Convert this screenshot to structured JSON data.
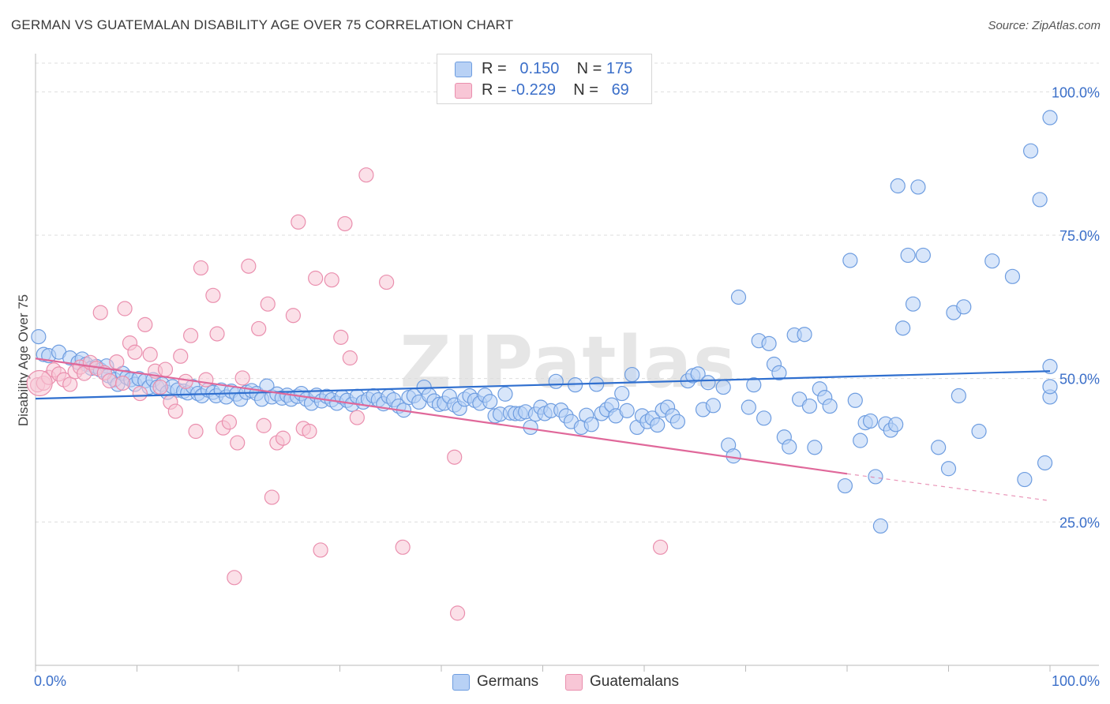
{
  "title": "GERMAN VS GUATEMALAN DISABILITY AGE OVER 75 CORRELATION CHART",
  "source": "Source: ZipAtlas.com",
  "watermark": "ZIPatlas",
  "legend": {
    "rows": [
      {
        "r_label": "R =",
        "r_value": "0.150",
        "n_label": "N =",
        "n_value": "175"
      },
      {
        "r_label": "R =",
        "r_value": "-0.229",
        "n_label": "N =",
        "n_value": "69"
      }
    ]
  },
  "colors": {
    "blue_fill": "#b8d1f5",
    "blue_stroke": "#6e9de0",
    "blue_line": "#2f6fcf",
    "pink_fill": "#f8c6d6",
    "pink_stroke": "#ea8fae",
    "pink_line": "#e0689a",
    "axis_label_blue": "#3b6fc9",
    "grid": "#dddddd"
  },
  "chart_data": {
    "type": "scatter",
    "title": "GERMAN VS GUATEMALAN DISABILITY AGE OVER 75 CORRELATION CHART",
    "xlabel": "",
    "ylabel": "Disability Age Over 75",
    "xlim": [
      0,
      100
    ],
    "ylim": [
      0,
      105
    ],
    "x_tick_labels": [
      "0.0%",
      "100.0%"
    ],
    "y_ticks": [
      25,
      50,
      75,
      100
    ],
    "y_tick_labels": [
      "25.0%",
      "50.0%",
      "75.0%",
      "100.0%"
    ],
    "grid": "horizontal dashed",
    "legend_position": "bottom",
    "series": [
      {
        "name": "Germans",
        "color": "#6e9de0",
        "trend": {
          "x": [
            0,
            100
          ],
          "y": [
            46.5,
            51.3
          ],
          "style": "solid"
        },
        "points": [
          [
            0.3,
            57.3
          ],
          [
            0.8,
            54.2
          ],
          [
            1.3,
            54.0
          ],
          [
            2.3,
            54.6
          ],
          [
            3.4,
            53.6
          ],
          [
            4.2,
            52.8
          ],
          [
            4.6,
            53.4
          ],
          [
            5.0,
            52.5
          ],
          [
            5.5,
            51.8
          ],
          [
            6.0,
            52.1
          ],
          [
            6.4,
            51.5
          ],
          [
            7.0,
            52.2
          ],
          [
            7.2,
            50.5
          ],
          [
            7.8,
            49.8
          ],
          [
            8.1,
            49.0
          ],
          [
            8.6,
            50.9
          ],
          [
            9.0,
            50.2
          ],
          [
            9.4,
            49.8
          ],
          [
            9.8,
            49.0
          ],
          [
            10.2,
            50.0
          ],
          [
            10.8,
            49.6
          ],
          [
            11.2,
            48.5
          ],
          [
            11.6,
            49.8
          ],
          [
            12.0,
            48.5
          ],
          [
            12.5,
            49.0
          ],
          [
            13.0,
            47.6
          ],
          [
            13.5,
            48.6
          ],
          [
            14.0,
            48.0
          ],
          [
            14.6,
            47.8
          ],
          [
            15.0,
            47.5
          ],
          [
            15.5,
            48.6
          ],
          [
            16.0,
            47.4
          ],
          [
            16.4,
            47.0
          ],
          [
            17.0,
            48.0
          ],
          [
            17.5,
            47.6
          ],
          [
            17.8,
            47.0
          ],
          [
            18.3,
            48.0
          ],
          [
            18.8,
            46.8
          ],
          [
            19.3,
            47.8
          ],
          [
            19.8,
            47.3
          ],
          [
            20.2,
            46.4
          ],
          [
            20.8,
            47.6
          ],
          [
            21.3,
            47.9
          ],
          [
            21.8,
            47.4
          ],
          [
            22.3,
            46.4
          ],
          [
            22.8,
            48.7
          ],
          [
            23.3,
            46.8
          ],
          [
            23.8,
            47.3
          ],
          [
            24.3,
            46.6
          ],
          [
            24.8,
            47.1
          ],
          [
            25.2,
            46.4
          ],
          [
            25.8,
            46.9
          ],
          [
            26.2,
            47.4
          ],
          [
            26.7,
            46.4
          ],
          [
            27.2,
            45.7
          ],
          [
            27.7,
            47.1
          ],
          [
            28.2,
            46.1
          ],
          [
            28.7,
            46.9
          ],
          [
            29.2,
            46.3
          ],
          [
            29.7,
            45.7
          ],
          [
            30.2,
            46.8
          ],
          [
            30.7,
            46.2
          ],
          [
            31.2,
            45.5
          ],
          [
            31.7,
            46.9
          ],
          [
            32.3,
            45.9
          ],
          [
            32.8,
            46.4
          ],
          [
            33.3,
            47.0
          ],
          [
            33.8,
            46.3
          ],
          [
            34.3,
            45.6
          ],
          [
            34.8,
            46.9
          ],
          [
            35.3,
            46.3
          ],
          [
            35.8,
            45.2
          ],
          [
            36.3,
            44.5
          ],
          [
            36.8,
            46.7
          ],
          [
            37.3,
            47.0
          ],
          [
            37.8,
            45.9
          ],
          [
            38.3,
            48.5
          ],
          [
            38.8,
            47.1
          ],
          [
            39.3,
            46.1
          ],
          [
            39.8,
            45.5
          ],
          [
            40.3,
            45.7
          ],
          [
            40.8,
            46.9
          ],
          [
            41.3,
            45.4
          ],
          [
            41.8,
            44.8
          ],
          [
            42.3,
            46.4
          ],
          [
            42.8,
            47.0
          ],
          [
            43.3,
            46.2
          ],
          [
            43.8,
            45.7
          ],
          [
            44.3,
            47.1
          ],
          [
            44.8,
            46.0
          ],
          [
            45.3,
            43.5
          ],
          [
            45.8,
            43.8
          ],
          [
            46.3,
            47.3
          ],
          [
            46.8,
            44.0
          ],
          [
            47.3,
            43.9
          ],
          [
            47.8,
            43.9
          ],
          [
            48.3,
            44.2
          ],
          [
            48.8,
            41.5
          ],
          [
            49.3,
            43.8
          ],
          [
            49.8,
            45.0
          ],
          [
            50.2,
            43.9
          ],
          [
            50.8,
            44.4
          ],
          [
            51.3,
            49.5
          ],
          [
            51.8,
            44.5
          ],
          [
            52.3,
            43.5
          ],
          [
            52.8,
            42.5
          ],
          [
            53.2,
            48.9
          ],
          [
            53.8,
            41.5
          ],
          [
            54.3,
            43.6
          ],
          [
            54.8,
            42.0
          ],
          [
            55.3,
            49.0
          ],
          [
            55.8,
            43.9
          ],
          [
            56.3,
            44.6
          ],
          [
            56.8,
            45.4
          ],
          [
            57.2,
            43.5
          ],
          [
            57.8,
            47.4
          ],
          [
            58.3,
            44.4
          ],
          [
            58.8,
            50.7
          ],
          [
            59.3,
            41.5
          ],
          [
            59.8,
            43.5
          ],
          [
            60.3,
            42.5
          ],
          [
            60.8,
            43.1
          ],
          [
            61.3,
            41.9
          ],
          [
            61.8,
            44.5
          ],
          [
            62.3,
            45.0
          ],
          [
            62.8,
            43.5
          ],
          [
            63.3,
            42.5
          ],
          [
            64.3,
            49.6
          ],
          [
            64.8,
            50.5
          ],
          [
            65.3,
            50.8
          ],
          [
            65.8,
            44.6
          ],
          [
            66.3,
            49.3
          ],
          [
            66.8,
            45.3
          ],
          [
            67.8,
            48.5
          ],
          [
            68.3,
            38.4
          ],
          [
            68.8,
            36.5
          ],
          [
            69.3,
            64.2
          ],
          [
            70.3,
            45.0
          ],
          [
            70.8,
            48.9
          ],
          [
            71.3,
            56.6
          ],
          [
            71.8,
            43.1
          ],
          [
            72.3,
            56.1
          ],
          [
            72.8,
            52.5
          ],
          [
            73.3,
            51.0
          ],
          [
            73.8,
            39.8
          ],
          [
            74.3,
            38.1
          ],
          [
            74.8,
            57.6
          ],
          [
            75.3,
            46.4
          ],
          [
            75.8,
            57.7
          ],
          [
            76.3,
            45.2
          ],
          [
            76.8,
            38.0
          ],
          [
            77.3,
            48.2
          ],
          [
            77.8,
            46.7
          ],
          [
            78.3,
            45.2
          ],
          [
            79.8,
            31.3
          ],
          [
            80.3,
            70.6
          ],
          [
            80.8,
            46.2
          ],
          [
            81.3,
            39.2
          ],
          [
            81.8,
            42.3
          ],
          [
            82.3,
            42.6
          ],
          [
            82.8,
            32.9
          ],
          [
            83.3,
            24.3
          ],
          [
            83.8,
            42.1
          ],
          [
            84.3,
            41.0
          ],
          [
            84.8,
            42.0
          ],
          [
            85.0,
            83.6
          ],
          [
            85.5,
            58.8
          ],
          [
            86.0,
            71.5
          ],
          [
            86.5,
            63.0
          ],
          [
            87.0,
            83.4
          ],
          [
            87.5,
            71.5
          ],
          [
            89.0,
            38.0
          ],
          [
            90.0,
            34.3
          ],
          [
            90.5,
            61.5
          ],
          [
            91.0,
            47.0
          ],
          [
            91.5,
            62.5
          ],
          [
            93.0,
            40.8
          ],
          [
            94.3,
            70.5
          ],
          [
            96.3,
            67.8
          ],
          [
            97.5,
            32.4
          ],
          [
            98.1,
            89.7
          ],
          [
            99.0,
            81.2
          ],
          [
            99.5,
            35.3
          ],
          [
            100.0,
            46.8
          ],
          [
            100.5,
            48.6
          ],
          [
            101.4,
            52.1
          ],
          [
            103.3,
            95.5
          ]
        ]
      },
      {
        "name": "Guatemalans",
        "color": "#ea8fae",
        "trend": {
          "x": [
            0,
            80
          ],
          "y": [
            53.5,
            33.4
          ],
          "style": "solid",
          "dashed_extension_to_x": 100,
          "dashed_extension_y": 28.7
        },
        "points": [
          [
            0.2,
            48.9
          ],
          [
            0.8,
            49.2
          ],
          [
            1.3,
            50.2
          ],
          [
            1.8,
            51.5
          ],
          [
            2.3,
            50.8
          ],
          [
            2.8,
            49.8
          ],
          [
            3.4,
            49.0
          ],
          [
            3.9,
            51.2
          ],
          [
            4.4,
            52.0
          ],
          [
            4.8,
            50.9
          ],
          [
            5.4,
            52.8
          ],
          [
            6.0,
            51.8
          ],
          [
            6.4,
            61.5
          ],
          [
            6.8,
            51.0
          ],
          [
            7.3,
            49.6
          ],
          [
            8.0,
            52.9
          ],
          [
            8.6,
            49.2
          ],
          [
            8.8,
            62.2
          ],
          [
            9.3,
            56.2
          ],
          [
            9.8,
            54.6
          ],
          [
            10.3,
            47.4
          ],
          [
            10.8,
            59.4
          ],
          [
            11.3,
            54.2
          ],
          [
            11.8,
            51.3
          ],
          [
            12.3,
            48.5
          ],
          [
            12.8,
            51.6
          ],
          [
            13.3,
            45.9
          ],
          [
            13.8,
            44.3
          ],
          [
            14.3,
            53.9
          ],
          [
            14.8,
            49.5
          ],
          [
            15.3,
            57.5
          ],
          [
            15.8,
            40.8
          ],
          [
            16.3,
            69.3
          ],
          [
            16.8,
            49.8
          ],
          [
            17.5,
            64.5
          ],
          [
            17.9,
            57.8
          ],
          [
            18.5,
            41.4
          ],
          [
            19.1,
            42.4
          ],
          [
            19.6,
            15.3
          ],
          [
            19.9,
            38.8
          ],
          [
            20.4,
            50.1
          ],
          [
            21.0,
            69.6
          ],
          [
            22.0,
            58.7
          ],
          [
            22.5,
            41.8
          ],
          [
            22.9,
            63.0
          ],
          [
            23.3,
            29.3
          ],
          [
            23.8,
            38.8
          ],
          [
            24.4,
            39.6
          ],
          [
            25.4,
            61.0
          ],
          [
            25.9,
            77.3
          ],
          [
            26.4,
            41.3
          ],
          [
            27.0,
            40.8
          ],
          [
            27.6,
            67.5
          ],
          [
            28.1,
            20.1
          ],
          [
            29.2,
            67.2
          ],
          [
            30.1,
            57.2
          ],
          [
            30.5,
            77.0
          ],
          [
            31.0,
            53.6
          ],
          [
            31.7,
            43.2
          ],
          [
            32.6,
            85.5
          ],
          [
            34.6,
            66.8
          ],
          [
            36.2,
            20.6
          ],
          [
            41.3,
            36.3
          ],
          [
            41.6,
            9.1
          ],
          [
            61.6,
            20.6
          ]
        ]
      }
    ]
  },
  "bottom_legend": [
    {
      "label": "Germans"
    },
    {
      "label": "Guatemalans"
    }
  ]
}
